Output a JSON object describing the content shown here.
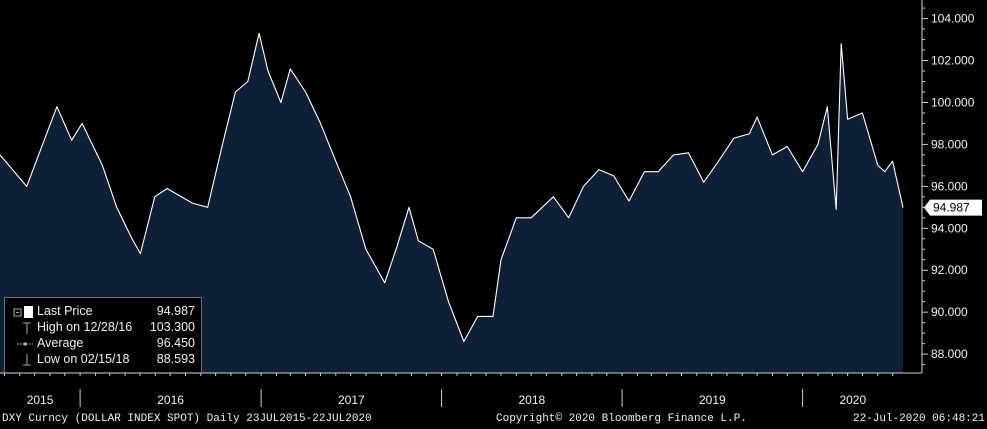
{
  "chart_data": {
    "type": "area",
    "x": [
      "2015-07-23",
      "2015-09-15",
      "2015-11-15",
      "2015-12-15",
      "2016-01-05",
      "2016-02-15",
      "2016-03-15",
      "2016-04-15",
      "2016-05-02",
      "2016-05-31",
      "2016-06-25",
      "2016-08-15",
      "2016-09-15",
      "2016-10-15",
      "2016-11-10",
      "2016-12-05",
      "2016-12-28",
      "2017-01-15",
      "2017-02-10",
      "2017-03-01",
      "2017-04-01",
      "2017-05-01",
      "2017-06-01",
      "2017-07-01",
      "2017-08-01",
      "2017-09-08",
      "2017-10-01",
      "2017-10-27",
      "2017-11-15",
      "2017-12-15",
      "2018-01-15",
      "2018-02-15",
      "2018-03-15",
      "2018-04-15",
      "2018-05-01",
      "2018-06-01",
      "2018-07-01",
      "2018-08-15",
      "2018-09-15",
      "2018-10-15",
      "2018-11-15",
      "2018-12-15",
      "2019-01-15",
      "2019-02-15",
      "2019-03-15",
      "2019-04-15",
      "2019-05-15",
      "2019-06-15",
      "2019-07-15",
      "2019-08-15",
      "2019-09-15",
      "2019-10-01",
      "2019-11-01",
      "2019-12-01",
      "2020-01-01",
      "2020-02-01",
      "2020-02-20",
      "2020-03-09",
      "2020-03-19",
      "2020-04-01",
      "2020-05-01",
      "2020-06-01",
      "2020-06-15",
      "2020-07-01",
      "2020-07-22"
    ],
    "series": [
      {
        "name": "Last Price",
        "values": [
          97.5,
          96.0,
          99.8,
          98.2,
          99.0,
          97.0,
          95.0,
          93.5,
          92.8,
          95.5,
          95.9,
          95.2,
          95.0,
          98.0,
          100.5,
          101.0,
          103.3,
          101.5,
          100.0,
          101.6,
          100.5,
          99.0,
          97.2,
          95.5,
          93.0,
          91.4,
          93.0,
          95.0,
          93.4,
          93.0,
          90.5,
          88.6,
          89.8,
          89.8,
          92.5,
          94.5,
          94.5,
          95.5,
          94.5,
          96.0,
          96.8,
          96.5,
          95.3,
          96.7,
          96.7,
          97.5,
          97.6,
          96.2,
          97.2,
          98.3,
          98.5,
          99.3,
          97.5,
          97.9,
          96.7,
          98.0,
          99.8,
          94.9,
          102.8,
          99.2,
          99.5,
          97.0,
          96.7,
          97.2,
          94.987
        ]
      }
    ],
    "ylim": [
      87.1,
      104.6
    ],
    "yticks": [
      "88.000",
      "90.000",
      "92.000",
      "94.000",
      "96.000",
      "98.000",
      "100.000",
      "102.000",
      "104.000"
    ],
    "xlim": [
      "2015-07-23",
      "2020-07-22"
    ],
    "x_tick_labels": [
      "2015",
      "2016",
      "2017",
      "2018",
      "2019",
      "2020"
    ],
    "last_value_label": "94.987",
    "colors": {
      "fill": "#0e2038",
      "line": "#ffffff",
      "background": "#000000"
    }
  },
  "legend": {
    "items": [
      {
        "label": "Last Price",
        "value": "94.987"
      },
      {
        "label": "High on 12/28/16",
        "value": "103.300"
      },
      {
        "label": "Average",
        "value": "96.450"
      },
      {
        "label": "Low on 02/15/18",
        "value": "88.593"
      }
    ]
  },
  "footer": {
    "ticker": "DXY Curncy (DOLLAR INDEX SPOT)  Daily 23JUL2015-22JUL2020",
    "copyright": "Copyright© 2020 Bloomberg Finance L.P.",
    "timestamp": "22-Jul-2020 06:48:21"
  }
}
